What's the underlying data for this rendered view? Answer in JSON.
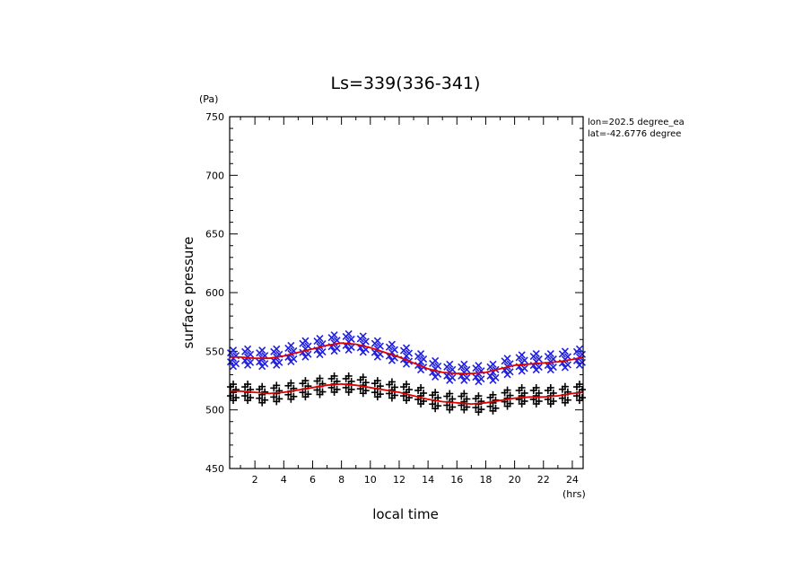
{
  "chart_data": {
    "type": "scatter",
    "title": "Ls=339(336-341)",
    "xlabel": "local time",
    "ylabel": "surface pressure",
    "x_unit": "(hrs)",
    "y_unit": "(Pa)",
    "annotations": [
      "lon=202.5 degree_ea",
      "lat=-42.6776 degree"
    ],
    "xlim": [
      0.25,
      24.75
    ],
    "ylim": [
      450,
      750
    ],
    "x_ticks": [
      2,
      4,
      6,
      8,
      10,
      12,
      14,
      16,
      18,
      20,
      22,
      24
    ],
    "y_ticks": [
      450,
      500,
      550,
      600,
      650,
      700,
      750
    ],
    "colors": {
      "upper_marks": "#1f1fe0",
      "lower_marks": "#000000",
      "fit_lines": "#e00000"
    },
    "series": [
      {
        "marker": "x",
        "color": "#1f1fe0",
        "x": [
          0.5,
          1.5,
          2.5,
          3.5,
          4.5,
          5.5,
          6.5,
          7.5,
          8.5,
          9.5,
          10.5,
          11.5,
          12.5,
          13.5,
          14.5,
          15.5,
          16.5,
          17.5,
          18.5,
          19.5,
          20.5,
          21.5,
          22.5,
          23.5,
          24.5
        ],
        "y": [
          544,
          545,
          544,
          545,
          548,
          552,
          554,
          557,
          558,
          556,
          552,
          549,
          546,
          541,
          535,
          532,
          532,
          531,
          532,
          537,
          540,
          541,
          541,
          543,
          545
        ]
      },
      {
        "marker": "+",
        "color": "#000000",
        "x": [
          0.5,
          1.5,
          2.5,
          3.5,
          4.5,
          5.5,
          6.5,
          7.5,
          8.5,
          9.5,
          10.5,
          11.5,
          12.5,
          13.5,
          14.5,
          15.5,
          16.5,
          17.5,
          18.5,
          19.5,
          20.5,
          21.5,
          22.5,
          23.5,
          24.5
        ],
        "y": [
          515,
          515,
          513,
          514,
          516,
          518,
          520,
          522,
          522,
          521,
          518,
          517,
          515,
          512,
          508,
          507,
          507,
          505,
          506,
          510,
          512,
          512,
          512,
          513,
          515
        ]
      },
      {
        "type": "line",
        "color": "#e00000",
        "x": [
          0.25,
          1,
          2,
          3,
          4,
          5,
          6,
          7,
          8,
          9,
          10,
          11,
          12,
          13,
          14,
          15,
          16,
          17,
          18,
          19,
          20,
          21,
          22,
          23,
          24,
          24.75
        ],
        "y": [
          545,
          545,
          544,
          544,
          546,
          549,
          552,
          555,
          557,
          556,
          553,
          549,
          545,
          540,
          535,
          532,
          531,
          531,
          532,
          535,
          538,
          539,
          540,
          541,
          543,
          545
        ]
      },
      {
        "type": "line",
        "color": "#e00000",
        "x": [
          0.25,
          1,
          2,
          3,
          4,
          5,
          6,
          7,
          8,
          9,
          10,
          11,
          12,
          13,
          14,
          15,
          16,
          17,
          18,
          19,
          20,
          21,
          22,
          23,
          24,
          24.75
        ],
        "y": [
          516,
          516,
          515,
          514,
          515,
          517,
          519,
          521,
          522,
          521,
          519,
          517,
          515,
          512,
          509,
          507,
          506,
          505,
          506,
          508,
          510,
          511,
          511,
          512,
          514,
          515
        ]
      }
    ]
  }
}
